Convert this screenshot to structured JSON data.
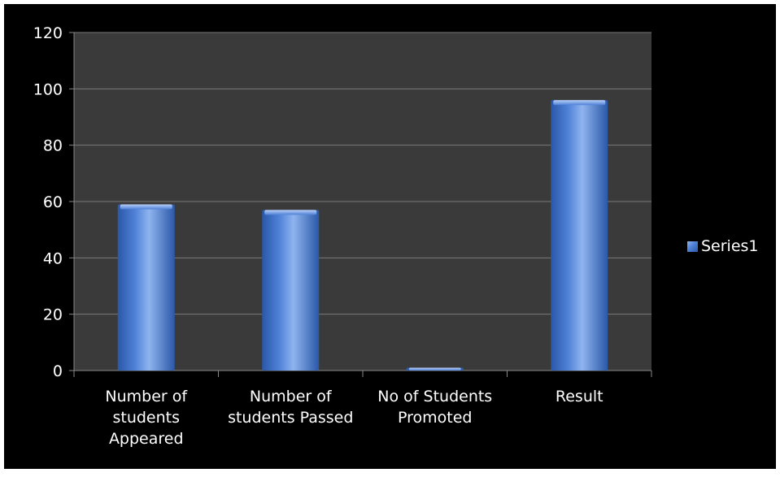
{
  "chart_data": {
    "type": "bar",
    "title": "",
    "xlabel": "",
    "ylabel": "",
    "categories": [
      [
        "Number of",
        "students",
        "Appeared"
      ],
      [
        "Number of",
        "students Passed"
      ],
      [
        "No of Students",
        "Promoted"
      ],
      [
        "Result"
      ]
    ],
    "series": [
      {
        "name": "Series1",
        "values": [
          59,
          57,
          1,
          96
        ]
      }
    ],
    "ylim": [
      0,
      120
    ],
    "yticks": [
      "0",
      "20",
      "40",
      "60",
      "80",
      "100",
      "120"
    ],
    "grid": true,
    "legend_position": "right",
    "colors": {
      "background": "#000000",
      "plot_area": "#3a3a3a",
      "grid": "#7a7a7a",
      "axis": "#888888",
      "bar_light": "#8fb4ef",
      "bar_mid": "#4f81d8",
      "bar_dark": "#2a58a8"
    }
  }
}
